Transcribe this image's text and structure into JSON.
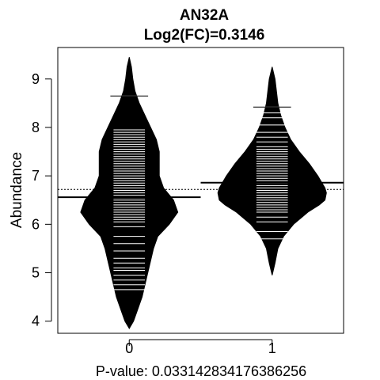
{
  "chart_data": {
    "type": "beanplot",
    "title": "AN32A",
    "subtitle": "Log2(FC)=0.3146",
    "ylabel": "Abundance",
    "xlabel": "P-value: 0.033142834176386256",
    "categories": [
      "0",
      "1"
    ],
    "ylim": [
      3.75,
      9.65
    ],
    "xlim": [
      0.5,
      2.5
    ],
    "yticks": [
      4,
      5,
      6,
      7,
      8,
      9
    ],
    "overall_mean": 6.72,
    "groups": [
      {
        "name": "0",
        "mean": 6.56,
        "max_point": 8.65,
        "min_point": 4.65,
        "density": [
          [
            3.85,
            0.0
          ],
          [
            4.0,
            0.03
          ],
          [
            4.25,
            0.06
          ],
          [
            4.5,
            0.09
          ],
          [
            4.75,
            0.11
          ],
          [
            5.0,
            0.13
          ],
          [
            5.25,
            0.15
          ],
          [
            5.5,
            0.17
          ],
          [
            5.75,
            0.2
          ],
          [
            6.0,
            0.28
          ],
          [
            6.25,
            0.34
          ],
          [
            6.5,
            0.31
          ],
          [
            6.75,
            0.24
          ],
          [
            7.0,
            0.21
          ],
          [
            7.25,
            0.21
          ],
          [
            7.5,
            0.21
          ],
          [
            7.75,
            0.19
          ],
          [
            8.0,
            0.15
          ],
          [
            8.25,
            0.11
          ],
          [
            8.5,
            0.07
          ],
          [
            8.75,
            0.04
          ],
          [
            9.0,
            0.025
          ],
          [
            9.25,
            0.015
          ],
          [
            9.45,
            0.0
          ]
        ],
        "points": [
          4.65,
          4.75,
          4.85,
          4.95,
          5.05,
          5.1,
          5.2,
          5.3,
          5.45,
          5.6,
          5.75,
          5.95,
          6.05,
          6.1,
          6.15,
          6.2,
          6.25,
          6.3,
          6.35,
          6.4,
          6.45,
          6.5,
          6.55,
          6.6,
          6.65,
          6.7,
          6.75,
          6.8,
          6.85,
          6.9,
          6.95,
          7.0,
          7.05,
          7.1,
          7.15,
          7.2,
          7.25,
          7.3,
          7.35,
          7.4,
          7.45,
          7.5,
          7.55,
          7.6,
          7.65,
          7.7,
          7.75,
          7.8,
          7.85,
          7.9,
          7.95,
          8.65
        ]
      },
      {
        "name": "1",
        "mean": 6.86,
        "max_point": 8.42,
        "min_point": 5.7,
        "density": [
          [
            4.95,
            0.0
          ],
          [
            5.2,
            0.02
          ],
          [
            5.5,
            0.04
          ],
          [
            5.75,
            0.08
          ],
          [
            6.0,
            0.15
          ],
          [
            6.25,
            0.25
          ],
          [
            6.4,
            0.33
          ],
          [
            6.5,
            0.37
          ],
          [
            6.65,
            0.38
          ],
          [
            6.75,
            0.37
          ],
          [
            7.0,
            0.32
          ],
          [
            7.25,
            0.26
          ],
          [
            7.5,
            0.19
          ],
          [
            7.75,
            0.13
          ],
          [
            8.0,
            0.09
          ],
          [
            8.25,
            0.06
          ],
          [
            8.5,
            0.04
          ],
          [
            8.75,
            0.03
          ],
          [
            9.0,
            0.02
          ],
          [
            9.25,
            0.0
          ]
        ],
        "points": [
          5.7,
          5.85,
          6.05,
          6.15,
          6.25,
          6.3,
          6.35,
          6.4,
          6.45,
          6.5,
          6.55,
          6.6,
          6.65,
          6.7,
          6.75,
          6.8,
          6.85,
          6.9,
          6.95,
          7.0,
          7.05,
          7.1,
          7.15,
          7.2,
          7.25,
          7.3,
          7.35,
          7.4,
          7.45,
          7.5,
          7.55,
          7.6,
          7.7,
          7.8,
          7.9,
          8.05,
          8.2,
          8.3,
          8.42
        ]
      }
    ],
    "colors": {
      "bean": "#000000",
      "line": "#ffffff",
      "axis": "#000000",
      "background": "#ffffff"
    }
  }
}
